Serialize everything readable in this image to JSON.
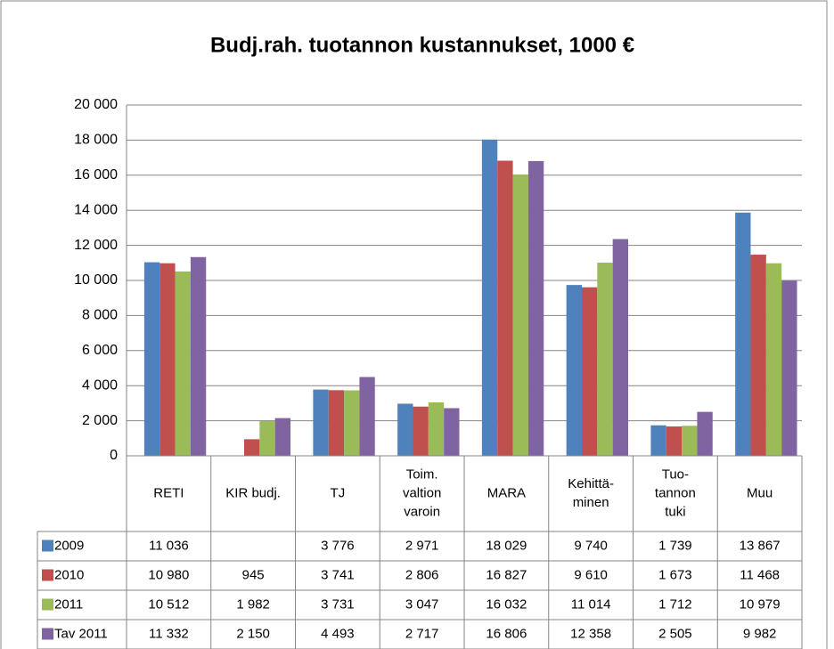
{
  "chart_data": {
    "type": "bar",
    "title": "Budj.rah. tuotannon kustannukset, 1000 €",
    "categories": [
      [
        "RETI"
      ],
      [
        "KIR budj."
      ],
      [
        "TJ"
      ],
      [
        "Toim.",
        "valtion",
        "varoin"
      ],
      [
        "MARA"
      ],
      [
        "Kehittä-",
        "minen"
      ],
      [
        "Tuo-",
        "tannon",
        "tuki"
      ],
      [
        "Muu"
      ]
    ],
    "series": [
      {
        "name": "2009",
        "color": "#4f81bd",
        "values": [
          11036,
          null,
          3776,
          2971,
          18029,
          9740,
          1739,
          13867
        ],
        "value_labels": [
          "11 036",
          null,
          "3 776",
          "2 971",
          "18 029",
          "9 740",
          "1 739",
          "13 867"
        ]
      },
      {
        "name": "2010",
        "color": "#c0504d",
        "values": [
          10980,
          945,
          3741,
          2806,
          16827,
          9610,
          1673,
          11468
        ],
        "value_labels": [
          "10 980",
          "945",
          "3 741",
          "2 806",
          "16 827",
          "9 610",
          "1 673",
          "11 468"
        ]
      },
      {
        "name": "2011",
        "color": "#9bbb59",
        "values": [
          10512,
          1982,
          3731,
          3047,
          16032,
          11014,
          1712,
          10979
        ],
        "value_labels": [
          "10 512",
          "1 982",
          "3 731",
          "3 047",
          "16 032",
          "11 014",
          "1 712",
          "10 979"
        ]
      },
      {
        "name": "Tav 2011",
        "color": "#8064a2",
        "values": [
          11332,
          2150,
          4493,
          2717,
          16806,
          12358,
          2505,
          9982
        ],
        "value_labels": [
          "11 332",
          "2 150",
          "4 493",
          "2 717",
          "16 806",
          "12 358",
          "2 505",
          "9 982"
        ]
      }
    ],
    "ylim": [
      0,
      20000
    ],
    "yticks": [
      0,
      {
        "value": 2000,
        "label": "2 000"
      },
      {
        "value": 4000,
        "label": "4 000"
      },
      {
        "value": 6000,
        "label": "6 000"
      },
      {
        "value": 8000,
        "label": "8 000"
      },
      {
        "value": 10000,
        "label": "10 000"
      },
      {
        "value": 12000,
        "label": "12 000"
      },
      {
        "value": 14000,
        "label": "14 000"
      },
      {
        "value": 16000,
        "label": "16 000"
      },
      {
        "value": 18000,
        "label": "18 000"
      },
      {
        "value": 20000,
        "label": "20 000"
      }
    ],
    "grid": true,
    "legend": "table"
  }
}
